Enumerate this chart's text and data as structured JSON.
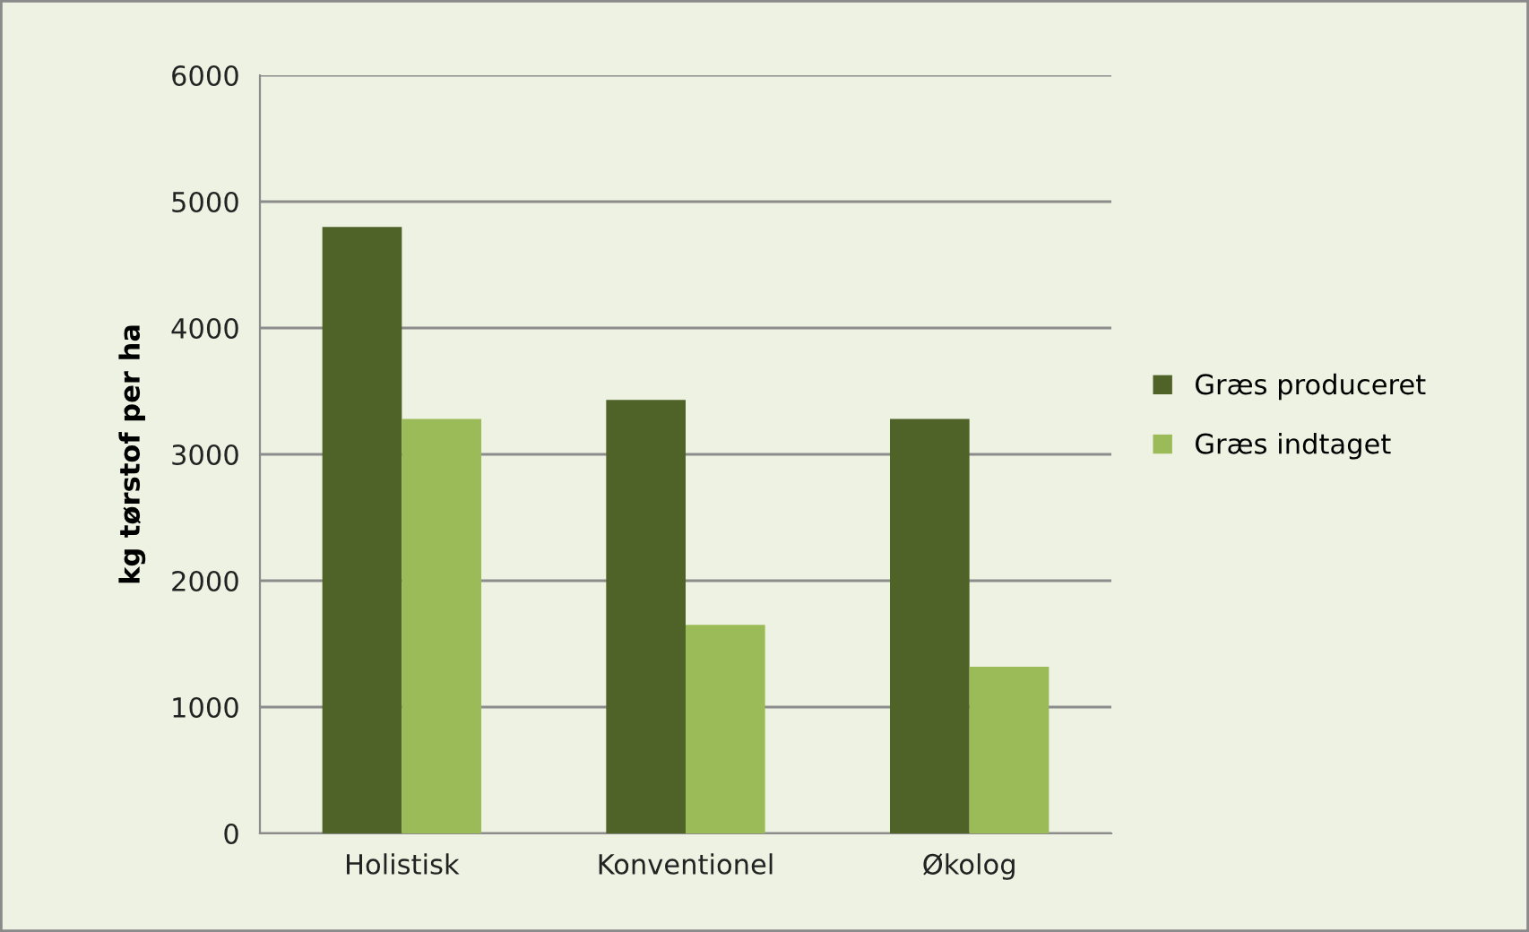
{
  "chart_data": {
    "type": "bar",
    "ylabel": "kg tørstof per ha",
    "categories": [
      "Holistisk",
      "Konventionel",
      "Økolog"
    ],
    "series": [
      {
        "name": "Græs produceret",
        "color": "#4f6228",
        "values": [
          4800,
          3430,
          3280
        ]
      },
      {
        "name": "Græs indtaget",
        "color": "#9bbb59",
        "values": [
          3280,
          1650,
          1320
        ]
      }
    ],
    "ylim": [
      0,
      6000
    ],
    "yticks": [
      0,
      1000,
      2000,
      3000,
      4000,
      5000,
      6000
    ],
    "grid": "y",
    "legend": "right"
  }
}
